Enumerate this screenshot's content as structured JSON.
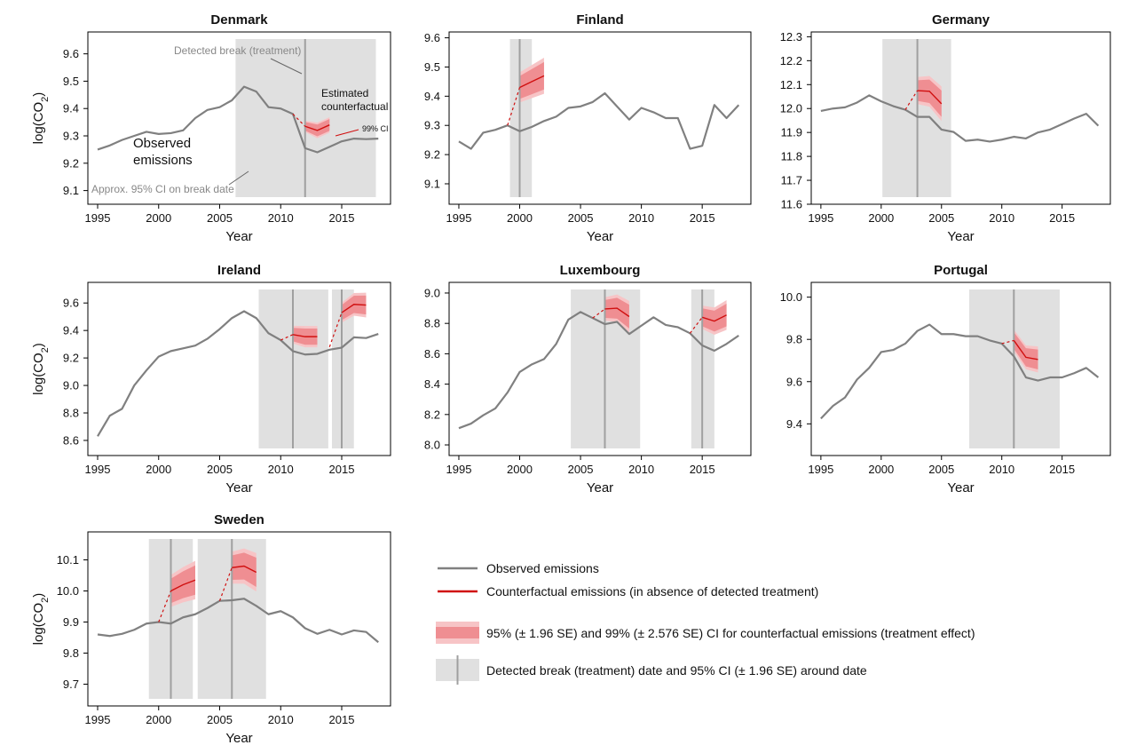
{
  "colors": {
    "observed": "#808080",
    "counterfactual": "#d01010",
    "ci95": "#ef8e92",
    "ci99": "#f7c4c6",
    "break_band": "#e0e0e0",
    "break_line": "#a0a0a0"
  },
  "legend": {
    "observed": "Observed emissions",
    "counterfactual": "Counterfactual emissions (in absence of detected treatment)",
    "ci": "95% (± 1.96 SE) and 99% (± 2.576 SE) CI for counterfactual emissions (treatment effect)",
    "break": "Detected break (treatment) date and 95% CI (± 1.96 SE) around date"
  },
  "chart_data": [
    {
      "type": "line",
      "title": "Denmark",
      "xlabel": "Year",
      "ylabel": "log(CO2)",
      "xlim": [
        1994.2,
        2019
      ],
      "ylim": [
        9.05,
        9.68
      ],
      "xticks": [
        1995,
        2000,
        2005,
        2010,
        2015
      ],
      "yticks": [
        "9.1",
        "9.2",
        "9.3",
        "9.4",
        "9.5",
        "9.6"
      ],
      "observed": {
        "x": [
          1995,
          1996,
          1997,
          1998,
          1999,
          2000,
          2001,
          2002,
          2003,
          2004,
          2005,
          2006,
          2007,
          2008,
          2009,
          2010,
          2011,
          2012,
          2013,
          2014,
          2015,
          2016,
          2017,
          2018
        ],
        "y": [
          9.25,
          9.265,
          9.285,
          9.3,
          9.315,
          9.307,
          9.31,
          9.32,
          9.365,
          9.395,
          9.405,
          9.43,
          9.48,
          9.462,
          9.405,
          9.4,
          9.38,
          9.255,
          9.24,
          9.26,
          9.28,
          9.29,
          9.288,
          9.29
        ]
      },
      "breaks": [
        {
          "date": 2012,
          "ci": [
            2006.3,
            2017.8
          ],
          "cf": {
            "x": [
              2011,
              2012,
              2013,
              2014
            ],
            "y": [
              9.38,
              9.335,
              9.32,
              9.34
            ],
            "se": [
              0,
              0.008,
              0.011,
              0.011
            ]
          }
        }
      ],
      "annotations": [
        {
          "text": "Detected break (treatment)",
          "size": 12,
          "color": "#888888"
        },
        {
          "text": "Estimated",
          "size": 12,
          "color": "#111111"
        },
        {
          "text": "counterfactual",
          "size": 12,
          "color": "#111111"
        },
        {
          "text": "99% CI",
          "size": 9,
          "color": "#111111"
        },
        {
          "text": "Observed",
          "size": 15,
          "color": "#111111"
        },
        {
          "text": "emissions",
          "size": 15,
          "color": "#111111"
        },
        {
          "text": "Approx. 95% CI on break date",
          "size": 12,
          "color": "#888888"
        }
      ]
    },
    {
      "type": "line",
      "title": "Finland",
      "xlabel": "Year",
      "ylabel": "",
      "xlim": [
        1994.2,
        2019
      ],
      "ylim": [
        9.03,
        9.62
      ],
      "xticks": [
        1995,
        2000,
        2005,
        2010,
        2015
      ],
      "yticks": [
        "9.1",
        "9.2",
        "9.3",
        "9.4",
        "9.5",
        "9.6"
      ],
      "observed": {
        "x": [
          1995,
          1996,
          1997,
          1998,
          1999,
          2000,
          2001,
          2002,
          2003,
          2004,
          2005,
          2006,
          2007,
          2008,
          2009,
          2010,
          2011,
          2012,
          2013,
          2014,
          2015,
          2016,
          2017,
          2018
        ],
        "y": [
          9.245,
          9.22,
          9.275,
          9.285,
          9.3,
          9.28,
          9.295,
          9.315,
          9.33,
          9.36,
          9.365,
          9.38,
          9.41,
          9.365,
          9.32,
          9.36,
          9.345,
          9.325,
          9.325,
          9.22,
          9.23,
          9.37,
          9.325,
          9.37
        ]
      },
      "breaks": [
        {
          "date": 2000,
          "ci": [
            1999.2,
            2001
          ],
          "cf": {
            "x": [
              1999,
              2000,
              2001,
              2002
            ],
            "y": [
              9.3,
              9.43,
              9.45,
              9.47
            ],
            "se": [
              0,
              0.02,
              0.022,
              0.024
            ]
          }
        }
      ],
      "annotations": []
    },
    {
      "type": "line",
      "title": "Germany",
      "xlabel": "Year",
      "ylabel": "",
      "xlim": [
        1994.2,
        2019
      ],
      "ylim": [
        11.6,
        12.32
      ],
      "xticks": [
        1995,
        2000,
        2005,
        2010,
        2015
      ],
      "yticks": [
        "11.6",
        "11.7",
        "11.8",
        "11.9",
        "12.0",
        "12.1",
        "12.2",
        "12.3"
      ],
      "observed": {
        "x": [
          1995,
          1996,
          1997,
          1998,
          1999,
          2000,
          2001,
          2002,
          2003,
          2004,
          2005,
          2006,
          2007,
          2008,
          2009,
          2010,
          2011,
          2012,
          2013,
          2014,
          2015,
          2016,
          2017,
          2018
        ],
        "y": [
          11.99,
          12.0,
          12.005,
          12.025,
          12.055,
          12.03,
          12.01,
          11.995,
          11.965,
          11.965,
          11.912,
          11.902,
          11.865,
          11.87,
          11.862,
          11.87,
          11.882,
          11.875,
          11.9,
          11.912,
          11.935,
          11.958,
          11.978,
          11.928
        ]
      },
      "breaks": [
        {
          "date": 2003,
          "ci": [
            2000.1,
            2005.8
          ],
          "cf": {
            "x": [
              2002,
              2003,
              2004,
              2005
            ],
            "y": [
              11.995,
              12.075,
              12.072,
              12.02
            ],
            "se": [
              0,
              0.022,
              0.025,
              0.028
            ]
          }
        }
      ],
      "annotations": []
    },
    {
      "type": "line",
      "title": "Ireland",
      "xlabel": "Year",
      "ylabel": "log(CO2)",
      "xlim": [
        1994.2,
        2019
      ],
      "ylim": [
        8.49,
        9.75
      ],
      "xticks": [
        1995,
        2000,
        2005,
        2010,
        2015
      ],
      "yticks": [
        "8.6",
        "8.8",
        "9.0",
        "9.2",
        "9.4",
        "9.6"
      ],
      "observed": {
        "x": [
          1995,
          1996,
          1997,
          1998,
          1999,
          2000,
          2001,
          2002,
          2003,
          2004,
          2005,
          2006,
          2007,
          2008,
          2009,
          2010,
          2011,
          2012,
          2013,
          2014,
          2015,
          2016,
          2017,
          2018
        ],
        "y": [
          8.63,
          8.78,
          8.83,
          9.0,
          9.11,
          9.21,
          9.25,
          9.27,
          9.29,
          9.34,
          9.41,
          9.49,
          9.54,
          9.49,
          9.38,
          9.33,
          9.25,
          9.225,
          9.23,
          9.26,
          9.275,
          9.35,
          9.345,
          9.375
        ]
      },
      "breaks": [
        {
          "date": 2011,
          "ci": [
            2008.2,
            2013.9
          ],
          "cf": {
            "x": [
              2010,
              2011,
              2012,
              2013
            ],
            "y": [
              9.33,
              9.37,
              9.355,
              9.355
            ],
            "se": [
              0,
              0.025,
              0.03,
              0.03
            ]
          }
        },
        {
          "date": 2015,
          "ci": [
            2014.2,
            2016
          ],
          "cf": {
            "x": [
              2014,
              2015,
              2016,
              2017
            ],
            "y": [
              9.28,
              9.53,
              9.59,
              9.585
            ],
            "se": [
              0,
              0.028,
              0.032,
              0.035
            ]
          }
        }
      ],
      "annotations": []
    },
    {
      "type": "line",
      "title": "Luxembourg",
      "xlabel": "Year",
      "ylabel": "",
      "xlim": [
        1994.2,
        2019
      ],
      "ylim": [
        7.93,
        9.07
      ],
      "xticks": [
        1995,
        2000,
        2005,
        2010,
        2015
      ],
      "yticks": [
        "8.0",
        "8.2",
        "8.4",
        "8.6",
        "8.8",
        "9.0"
      ],
      "observed": {
        "x": [
          1995,
          1996,
          1997,
          1998,
          1999,
          2000,
          2001,
          2002,
          2003,
          2004,
          2005,
          2006,
          2007,
          2008,
          2009,
          2010,
          2011,
          2012,
          2013,
          2014,
          2015,
          2016,
          2017,
          2018
        ],
        "y": [
          8.11,
          8.14,
          8.195,
          8.24,
          8.345,
          8.48,
          8.53,
          8.565,
          8.665,
          8.825,
          8.875,
          8.835,
          8.795,
          8.81,
          8.73,
          8.785,
          8.84,
          8.79,
          8.775,
          8.735,
          8.655,
          8.62,
          8.665,
          8.72
        ]
      },
      "breaks": [
        {
          "date": 2007,
          "ci": [
            2004.2,
            2009.9
          ],
          "cf": {
            "x": [
              2006,
              2007,
              2008,
              2009
            ],
            "y": [
              8.835,
              8.895,
              8.9,
              8.845
            ],
            "se": [
              0,
              0.03,
              0.035,
              0.04
            ]
          }
        },
        {
          "date": 2015,
          "ci": [
            2014.1,
            2016
          ],
          "cf": {
            "x": [
              2014,
              2015,
              2016,
              2017
            ],
            "y": [
              8.735,
              8.84,
              8.815,
              8.855
            ],
            "se": [
              0,
              0.03,
              0.035,
              0.038
            ]
          }
        }
      ],
      "annotations": []
    },
    {
      "type": "line",
      "title": "Portugal",
      "xlabel": "Year",
      "ylabel": "",
      "xlim": [
        1994.2,
        2019
      ],
      "ylim": [
        9.25,
        10.07
      ],
      "xticks": [
        1995,
        2000,
        2005,
        2010,
        2015
      ],
      "yticks": [
        "9.4",
        "9.6",
        "9.8",
        "10.0"
      ],
      "observed": {
        "x": [
          1995,
          1996,
          1997,
          1998,
          1999,
          2000,
          2001,
          2002,
          2003,
          2004,
          2005,
          2006,
          2007,
          2008,
          2009,
          2010,
          2011,
          2012,
          2013,
          2014,
          2015,
          2016,
          2017,
          2018
        ],
        "y": [
          9.425,
          9.485,
          9.525,
          9.61,
          9.665,
          9.74,
          9.75,
          9.78,
          9.84,
          9.87,
          9.825,
          9.825,
          9.815,
          9.815,
          9.795,
          9.78,
          9.72,
          9.62,
          9.605,
          9.62,
          9.62,
          9.64,
          9.665,
          9.62
        ]
      },
      "breaks": [
        {
          "date": 2011,
          "ci": [
            2007.3,
            2014.8
          ],
          "cf": {
            "x": [
              2010,
              2011,
              2012,
              2013
            ],
            "y": [
              9.78,
              9.795,
              9.715,
              9.705
            ],
            "se": [
              0,
              0.02,
              0.022,
              0.024
            ]
          }
        }
      ],
      "annotations": []
    },
    {
      "type": "line",
      "title": "Sweden",
      "xlabel": "Year",
      "ylabel": "log(CO2)",
      "xlim": [
        1994.2,
        2019
      ],
      "ylim": [
        9.63,
        10.19
      ],
      "xticks": [
        1995,
        2000,
        2005,
        2010,
        2015
      ],
      "yticks": [
        "9.7",
        "9.8",
        "9.9",
        "10.0",
        "10.1"
      ],
      "observed": {
        "x": [
          1995,
          1996,
          1997,
          1998,
          1999,
          2000,
          2001,
          2002,
          2003,
          2004,
          2005,
          2006,
          2007,
          2008,
          2009,
          2010,
          2011,
          2012,
          2013,
          2014,
          2015,
          2016,
          2017,
          2018
        ],
        "y": [
          9.86,
          9.855,
          9.862,
          9.875,
          9.895,
          9.9,
          9.895,
          9.915,
          9.925,
          9.945,
          9.968,
          9.97,
          9.975,
          9.952,
          9.925,
          9.935,
          9.915,
          9.88,
          9.862,
          9.875,
          9.86,
          9.873,
          9.868,
          9.835
        ]
      },
      "breaks": [
        {
          "date": 2001,
          "ci": [
            1999.2,
            2002.8
          ],
          "cf": {
            "x": [
              2000,
              2001,
              2002,
              2003
            ],
            "y": [
              9.9,
              10.0,
              10.02,
              10.035
            ],
            "se": [
              0,
              0.02,
              0.022,
              0.024
            ]
          }
        },
        {
          "date": 2006,
          "ci": [
            2003.2,
            2008.8
          ],
          "cf": {
            "x": [
              2005,
              2006,
              2007,
              2008
            ],
            "y": [
              9.968,
              10.075,
              10.08,
              10.06
            ],
            "se": [
              0,
              0.02,
              0.022,
              0.024
            ]
          }
        }
      ],
      "annotations": []
    }
  ]
}
